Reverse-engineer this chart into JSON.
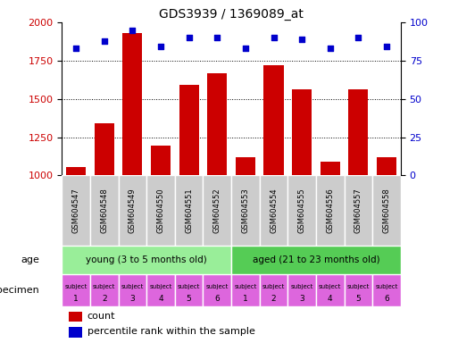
{
  "title": "GDS3939 / 1369089_at",
  "samples": [
    "GSM604547",
    "GSM604548",
    "GSM604549",
    "GSM604550",
    "GSM604551",
    "GSM604552",
    "GSM604553",
    "GSM604554",
    "GSM604555",
    "GSM604556",
    "GSM604557",
    "GSM604558"
  ],
  "counts": [
    1055,
    1340,
    1930,
    1195,
    1590,
    1665,
    1120,
    1720,
    1560,
    1090,
    1560,
    1120
  ],
  "percentiles": [
    83,
    88,
    95,
    84,
    90,
    90,
    83,
    90,
    89,
    83,
    90,
    84
  ],
  "ylim_left": [
    1000,
    2000
  ],
  "ylim_right": [
    0,
    100
  ],
  "yticks_left": [
    1000,
    1250,
    1500,
    1750,
    2000
  ],
  "yticks_right": [
    0,
    25,
    50,
    75,
    100
  ],
  "bar_color": "#cc0000",
  "scatter_color": "#0000cc",
  "grid_color": "#000000",
  "age_young_label": "young (3 to 5 months old)",
  "age_aged_label": "aged (21 to 23 months old)",
  "age_young_color": "#99ee99",
  "age_aged_color": "#55cc55",
  "specimen_color": "#dd66dd",
  "age_label": "age",
  "specimen_label": "specimen",
  "legend_count": "count",
  "legend_percentile": "percentile rank within the sample",
  "bar_width": 0.7,
  "xtick_bg": "#cccccc",
  "border_color": "#ffffff"
}
